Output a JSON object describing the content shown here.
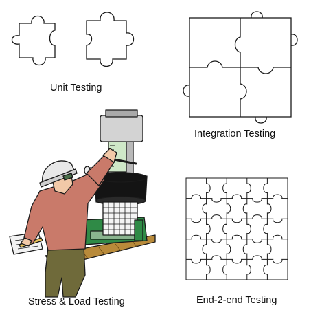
{
  "captions": {
    "unit": "Unit Testing",
    "integration": "Integration Testing",
    "stress": "Stress & Load Testing",
    "e2e": "End-2-end Testing"
  },
  "colors": {
    "outline": "#1a1a1a",
    "shirt": "#c97a6a",
    "pants": "#6f6a3a",
    "helmet": "#e8e8e8",
    "machine_green": "#2f8a46",
    "machine_black": "#141414",
    "machine_grey": "#b9b9b9",
    "gauge_green": "#cfe8c8",
    "platform": "#b88a3a",
    "skin": "#f2c9a8"
  }
}
